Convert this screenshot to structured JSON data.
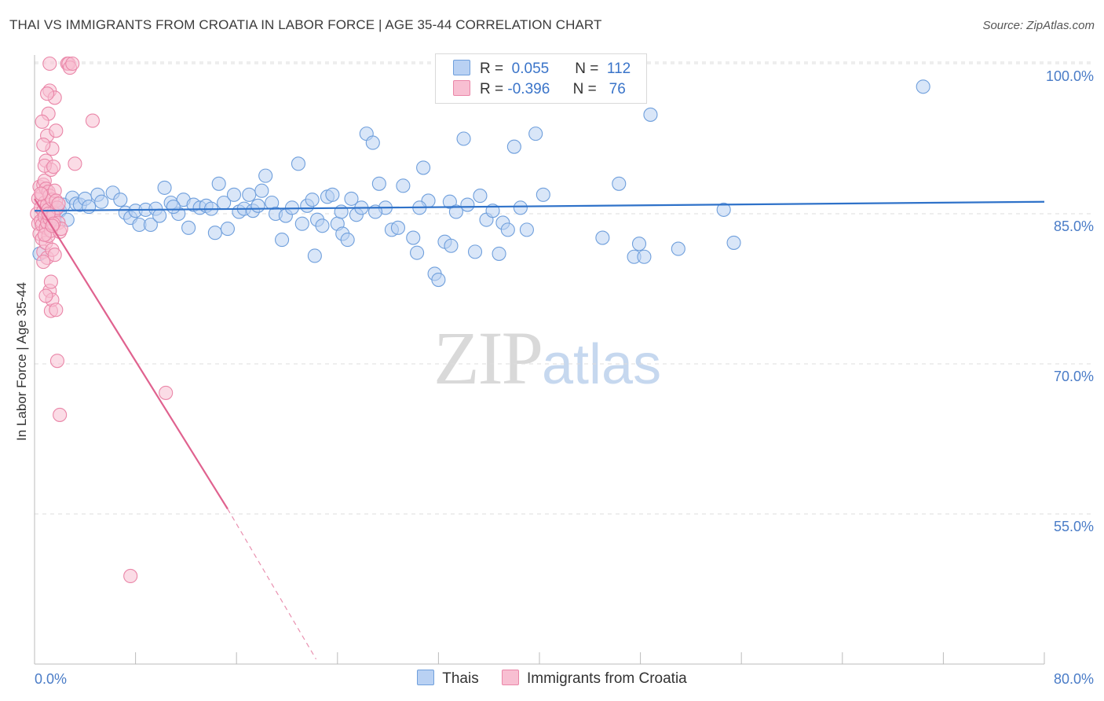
{
  "title": "THAI VS IMMIGRANTS FROM CROATIA IN LABOR FORCE | AGE 35-44 CORRELATION CHART",
  "source": "Source: ZipAtlas.com",
  "watermark": {
    "zip": "ZIP",
    "atlas": "atlas"
  },
  "colors": {
    "thai_fill": "#b9d1f3",
    "thai_stroke": "#6f9fdc",
    "thai_line": "#2f72c9",
    "croatia_fill": "#f8bfd2",
    "croatia_stroke": "#ea86a8",
    "croatia_line": "#e0628f",
    "grid": "#dddddd",
    "axis_text": "#4a7cc7"
  },
  "legend": {
    "rows": [
      {
        "r_label": "R =",
        "r_value": "0.055",
        "n_label": "N =",
        "n_value": "112"
      },
      {
        "r_label": "R =",
        "r_value": "-0.396",
        "n_label": "N =",
        "n_value": "76"
      }
    ]
  },
  "bottom_legend": [
    "Thais",
    "Immigrants from Croatia"
  ],
  "chart_data": {
    "type": "scatter",
    "ylabel": "In Labor Force | Age 35-44",
    "xlim": [
      0,
      80
    ],
    "ylim": [
      40,
      102
    ],
    "y_ticks": [
      {
        "value": 100,
        "label": "100.0%"
      },
      {
        "value": 85,
        "label": "85.0%"
      },
      {
        "value": 70,
        "label": "70.0%"
      },
      {
        "value": 55,
        "label": "55.0%"
      }
    ],
    "x_tick_labels": [
      {
        "value": 0,
        "label": "0.0%"
      },
      {
        "value": 80,
        "label": "80.0%"
      }
    ],
    "x_minor_ticks": [
      8,
      16,
      24,
      32,
      40,
      48,
      56,
      64,
      72,
      80
    ],
    "grid": true,
    "series": [
      {
        "name": "Thais",
        "trend": {
          "x0": 0,
          "y0": 85.3,
          "x1": 80,
          "y1": 86.2
        },
        "points": [
          [
            0.4,
            81.0
          ],
          [
            0.8,
            84.9
          ],
          [
            1.0,
            85.1
          ],
          [
            1.2,
            83.9
          ],
          [
            1.5,
            85.6
          ],
          [
            1.7,
            85.4
          ],
          [
            2.0,
            85.3
          ],
          [
            2.3,
            85.9
          ],
          [
            2.6,
            84.4
          ],
          [
            3.0,
            86.6
          ],
          [
            3.3,
            86.0
          ],
          [
            3.6,
            85.9
          ],
          [
            4.0,
            86.5
          ],
          [
            4.3,
            85.7
          ],
          [
            5.0,
            86.9
          ],
          [
            5.3,
            86.2
          ],
          [
            6.2,
            87.1
          ],
          [
            6.8,
            86.4
          ],
          [
            7.2,
            85.1
          ],
          [
            7.6,
            84.6
          ],
          [
            8.0,
            85.3
          ],
          [
            8.3,
            83.9
          ],
          [
            8.8,
            85.4
          ],
          [
            9.2,
            83.9
          ],
          [
            9.6,
            85.5
          ],
          [
            9.9,
            84.8
          ],
          [
            10.3,
            87.6
          ],
          [
            10.8,
            86.1
          ],
          [
            11.4,
            85.0
          ],
          [
            11.8,
            86.4
          ],
          [
            12.2,
            83.6
          ],
          [
            12.6,
            85.9
          ],
          [
            13.1,
            85.6
          ],
          [
            13.6,
            85.8
          ],
          [
            14.0,
            85.5
          ],
          [
            14.3,
            83.1
          ],
          [
            14.6,
            88.0
          ],
          [
            15.0,
            86.1
          ],
          [
            15.3,
            83.5
          ],
          [
            15.8,
            86.9
          ],
          [
            16.2,
            85.2
          ],
          [
            16.6,
            85.5
          ],
          [
            17.0,
            86.9
          ],
          [
            17.3,
            85.3
          ],
          [
            17.7,
            85.8
          ],
          [
            18.0,
            87.3
          ],
          [
            18.3,
            88.8
          ],
          [
            18.8,
            86.1
          ],
          [
            19.1,
            85.0
          ],
          [
            19.6,
            82.4
          ],
          [
            19.9,
            84.8
          ],
          [
            20.4,
            85.6
          ],
          [
            20.9,
            90.0
          ],
          [
            21.2,
            84.0
          ],
          [
            21.6,
            85.8
          ],
          [
            22.0,
            86.4
          ],
          [
            22.4,
            84.4
          ],
          [
            22.8,
            83.8
          ],
          [
            23.2,
            86.7
          ],
          [
            23.6,
            86.9
          ],
          [
            24.0,
            84.0
          ],
          [
            24.4,
            83.0
          ],
          [
            24.8,
            82.4
          ],
          [
            25.1,
            86.5
          ],
          [
            25.5,
            84.9
          ],
          [
            25.9,
            85.6
          ],
          [
            26.3,
            93.0
          ],
          [
            26.8,
            92.1
          ],
          [
            27.3,
            88.0
          ],
          [
            27.8,
            85.6
          ],
          [
            28.3,
            83.4
          ],
          [
            28.8,
            83.6
          ],
          [
            29.2,
            87.8
          ],
          [
            30.0,
            82.6
          ],
          [
            30.3,
            81.1
          ],
          [
            30.8,
            89.6
          ],
          [
            31.2,
            86.3
          ],
          [
            31.7,
            79.0
          ],
          [
            32.0,
            78.4
          ],
          [
            32.5,
            82.2
          ],
          [
            32.9,
            86.2
          ],
          [
            33.4,
            85.2
          ],
          [
            34.0,
            92.5
          ],
          [
            34.3,
            85.9
          ],
          [
            34.9,
            81.2
          ],
          [
            35.3,
            86.8
          ],
          [
            35.8,
            84.4
          ],
          [
            36.3,
            85.3
          ],
          [
            36.8,
            81.0
          ],
          [
            37.1,
            84.1
          ],
          [
            37.5,
            83.4
          ],
          [
            38.0,
            91.7
          ],
          [
            38.5,
            85.6
          ],
          [
            39.0,
            83.4
          ],
          [
            39.7,
            93.0
          ],
          [
            40.3,
            86.9
          ],
          [
            45.0,
            82.6
          ],
          [
            46.3,
            88.0
          ],
          [
            47.5,
            80.7
          ],
          [
            47.9,
            82.0
          ],
          [
            48.3,
            80.7
          ],
          [
            48.8,
            94.9
          ],
          [
            51.0,
            81.5
          ],
          [
            54.6,
            85.4
          ],
          [
            55.4,
            82.1
          ],
          [
            70.4,
            97.7
          ],
          [
            30.5,
            85.6
          ],
          [
            33.0,
            81.8
          ],
          [
            27.0,
            85.2
          ],
          [
            24.3,
            85.2
          ],
          [
            22.2,
            80.8
          ],
          [
            11.0,
            85.7
          ]
        ]
      },
      {
        "name": "Immigrants from Croatia",
        "trend": {
          "x0": 0,
          "y0": 86.5,
          "x1": 15.3,
          "y1": 55.5
        },
        "trend_dashed": {
          "x0": 15.3,
          "y0": 55.5,
          "x1": 22.3,
          "y1": 40.5
        },
        "points": [
          [
            0.2,
            85.0
          ],
          [
            0.3,
            84.0
          ],
          [
            0.3,
            86.5
          ],
          [
            0.4,
            87.7
          ],
          [
            0.4,
            83.0
          ],
          [
            0.5,
            85.6
          ],
          [
            0.5,
            84.3
          ],
          [
            0.6,
            82.5
          ],
          [
            0.6,
            86.9
          ],
          [
            0.6,
            83.9
          ],
          [
            0.7,
            87.9
          ],
          [
            0.7,
            85.3
          ],
          [
            0.7,
            81.2
          ],
          [
            0.8,
            88.3
          ],
          [
            0.8,
            84.7
          ],
          [
            0.8,
            86.1
          ],
          [
            0.9,
            87.5
          ],
          [
            0.9,
            83.6
          ],
          [
            0.9,
            82.1
          ],
          [
            1.0,
            85.9
          ],
          [
            1.0,
            84.1
          ],
          [
            1.0,
            80.6
          ],
          [
            1.1,
            87.2
          ],
          [
            1.1,
            85.4
          ],
          [
            1.1,
            82.8
          ],
          [
            1.2,
            86.8
          ],
          [
            1.2,
            84.5
          ],
          [
            1.2,
            77.3
          ],
          [
            1.3,
            83.3
          ],
          [
            1.3,
            75.3
          ],
          [
            1.4,
            86.4
          ],
          [
            1.4,
            81.4
          ],
          [
            1.4,
            76.4
          ],
          [
            1.5,
            85.1
          ],
          [
            1.5,
            84.8
          ],
          [
            1.6,
            87.3
          ],
          [
            1.6,
            80.9
          ],
          [
            1.7,
            86.3
          ],
          [
            1.7,
            75.4
          ],
          [
            1.8,
            85.6
          ],
          [
            1.9,
            84.1
          ],
          [
            2.0,
            83.2
          ],
          [
            2.1,
            83.5
          ],
          [
            0.9,
            90.3
          ],
          [
            1.0,
            92.8
          ],
          [
            1.1,
            95.0
          ],
          [
            1.2,
            97.3
          ],
          [
            1.3,
            89.4
          ],
          [
            1.4,
            91.5
          ],
          [
            1.6,
            96.6
          ],
          [
            1.7,
            93.3
          ],
          [
            2.6,
            100.0
          ],
          [
            2.7,
            100.0
          ],
          [
            2.8,
            99.6
          ],
          [
            3.0,
            100.0
          ],
          [
            3.2,
            90.0
          ],
          [
            0.6,
            94.2
          ],
          [
            0.7,
            91.9
          ],
          [
            0.8,
            89.8
          ],
          [
            1.0,
            97.0
          ],
          [
            1.2,
            100.0
          ],
          [
            1.5,
            89.7
          ],
          [
            1.8,
            70.3
          ],
          [
            2.0,
            64.9
          ],
          [
            4.6,
            94.3
          ],
          [
            10.4,
            67.1
          ],
          [
            7.6,
            48.8
          ],
          [
            0.9,
            76.8
          ],
          [
            1.3,
            78.2
          ],
          [
            0.7,
            80.2
          ],
          [
            1.1,
            85.0
          ],
          [
            0.8,
            82.9
          ],
          [
            1.5,
            84.0
          ],
          [
            0.5,
            87.0
          ],
          [
            1.9,
            86.0
          ],
          [
            1.4,
            83.8
          ]
        ]
      }
    ]
  }
}
